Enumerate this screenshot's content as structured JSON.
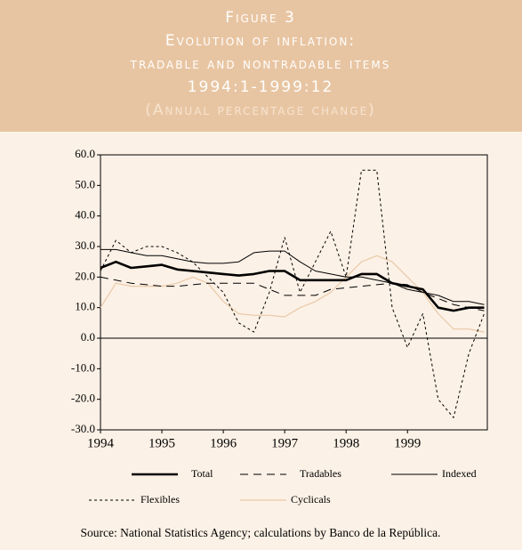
{
  "header": {
    "lines": [
      "Figure 3",
      "Evolution of inflation:",
      "tradable and nontradable items",
      "1994:1-1999:12",
      "(Annual percentage change)"
    ]
  },
  "chart_data": {
    "type": "line",
    "x": [
      1994,
      1994.25,
      1994.5,
      1994.75,
      1995,
      1995.25,
      1995.5,
      1995.75,
      1996,
      1996.25,
      1996.5,
      1996.75,
      1997,
      1997.25,
      1997.5,
      1997.75,
      1998,
      1998.25,
      1998.5,
      1998.75,
      1999,
      1999.25,
      1999.5,
      1999.75,
      2000,
      2000.25
    ],
    "series": [
      {
        "name": "Total",
        "color": "#000000",
        "dash": "solid",
        "width": 2.6,
        "values": [
          23,
          25,
          23,
          23.5,
          24,
          22.5,
          22,
          21.5,
          21,
          20.5,
          21,
          22,
          22,
          19,
          19,
          19,
          19,
          21,
          21,
          18,
          17,
          16,
          10,
          9,
          10,
          10
        ]
      },
      {
        "name": "Tradables",
        "color": "#000000",
        "dash": "long",
        "width": 1,
        "values": [
          20,
          19,
          18,
          17.5,
          17,
          17,
          17.5,
          18,
          18,
          18,
          18,
          16,
          14,
          14,
          14,
          16,
          16.5,
          17,
          17.5,
          18,
          17.5,
          15,
          13,
          11,
          10,
          9
        ]
      },
      {
        "name": "Indexed",
        "color": "#000000",
        "dash": "solid",
        "width": 1,
        "values": [
          29,
          29,
          28,
          27,
          27,
          26,
          25,
          24.5,
          24.5,
          25,
          28,
          28.5,
          28.5,
          25,
          22,
          21,
          20,
          20,
          19,
          18,
          16,
          15,
          14,
          12,
          12,
          11
        ]
      },
      {
        "name": "Flexibles",
        "color": "#000000",
        "dash": "short",
        "width": 1,
        "values": [
          22,
          32,
          28,
          30,
          30,
          28,
          25,
          20,
          15,
          5,
          2,
          15,
          33,
          15,
          25,
          35,
          20,
          55,
          55,
          10,
          -3,
          8,
          -20,
          -26,
          -5,
          8
        ]
      },
      {
        "name": "Cyclicals",
        "color": "#e9c9a8",
        "dash": "solid",
        "width": 1.2,
        "values": [
          10,
          18,
          17,
          17,
          17,
          18,
          20,
          18,
          12,
          8,
          7.5,
          7.5,
          7,
          10,
          12,
          15,
          20,
          25,
          27,
          25,
          20,
          15,
          8,
          3,
          3,
          2
        ]
      }
    ],
    "xlim": [
      1994,
      2000.3
    ],
    "xticks": [
      1994,
      1995,
      1996,
      1997,
      1998,
      1999
    ],
    "ylim": [
      -30,
      60
    ],
    "yticks": [
      {
        "value": -30,
        "label": "-30.0"
      },
      {
        "value": -20,
        "label": "-20.0"
      },
      {
        "value": -10,
        "label": "-10.0"
      },
      {
        "value": 0,
        "label": "0.0"
      },
      {
        "value": 10,
        "label": "10.0"
      },
      {
        "value": 20,
        "label": "20.0"
      },
      {
        "value": 30,
        "label": "30.0"
      },
      {
        "value": 40,
        "label": "40.0"
      },
      {
        "value": 50,
        "label": "50.0"
      },
      {
        "value": 60,
        "label": "60.0"
      }
    ],
    "source": "Source: National Statistics Agency; calculations by Banco de la República."
  }
}
